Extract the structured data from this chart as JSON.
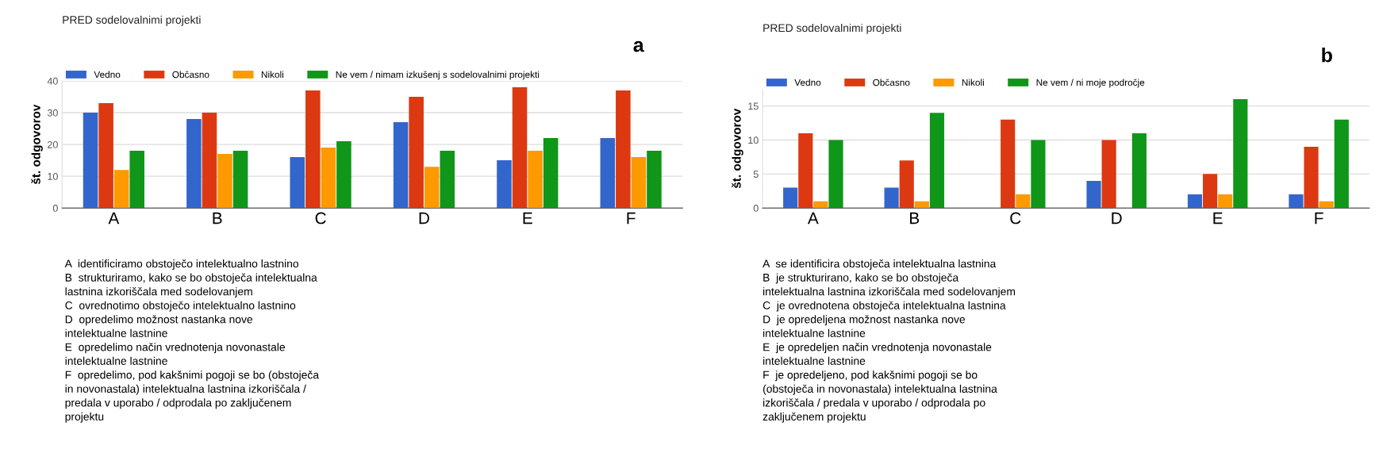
{
  "chart_data": [
    {
      "type": "bar",
      "title": "PRED sodelovalnimi projekti",
      "ylabel": "št. odgovorov",
      "categories": [
        "A",
        "B",
        "C",
        "D",
        "E",
        "F"
      ],
      "series": [
        {
          "name": "Vedno",
          "color": "#3366cc",
          "values": [
            30,
            28,
            16,
            27,
            15,
            22
          ]
        },
        {
          "name": "Občasno",
          "color": "#dc3912",
          "values": [
            33,
            30,
            37,
            35,
            38,
            37
          ]
        },
        {
          "name": "Nikoli",
          "color": "#ff9900",
          "values": [
            12,
            17,
            19,
            13,
            18,
            16
          ]
        },
        {
          "name": "Ne vem / nimam izkušenj s sodelovalnimi projekti",
          "color": "#109618",
          "values": [
            18,
            18,
            21,
            18,
            22,
            18
          ]
        }
      ],
      "ylim": [
        0,
        40
      ],
      "yticks": [
        0,
        10,
        20,
        30,
        40
      ],
      "grid": "y",
      "legend": "top left",
      "annotations": [
        "a",
        "A  identificiramo obstoječo intelektualno lastnino\nB  strukturiramo, kako se bo obstoječa intelektualna\nlastnina izkoriščala med sodelovanjem\nC  ovrednotimo obstoječo intelektualno lastnino\nD  opredelimo možnost nastanka nove\nintelektualne lastnine\nE  opredelimo način vrednotenja novonastale\nintelektualne lastnine\nF  opredelimo, pod kakšnimi pogoji se bo (obstoječa\nin novonastala) intelektualna lastnina izkoriščala /\npredala v uporabo / odprodala po zaključenem\nprojektu"
      ]
    },
    {
      "type": "bar",
      "title": "PRED sodelovalnimi projekti",
      "ylabel": "št. odgovorov",
      "categories": [
        "A",
        "B",
        "C",
        "D",
        "E",
        "F"
      ],
      "series": [
        {
          "name": "Vedno",
          "color": "#3366cc",
          "values": [
            3,
            3,
            0,
            4,
            2,
            2
          ]
        },
        {
          "name": "Občasno",
          "color": "#dc3912",
          "values": [
            11,
            7,
            13,
            10,
            5,
            9
          ]
        },
        {
          "name": "Nikoli",
          "color": "#ff9900",
          "values": [
            1,
            1,
            2,
            0,
            2,
            1
          ]
        },
        {
          "name": "Ne vem / ni moje področje",
          "color": "#109618",
          "values": [
            10,
            14,
            10,
            11,
            16,
            13
          ]
        }
      ],
      "ylim": [
        0,
        17.5
      ],
      "yticks": [
        0,
        5,
        10,
        15
      ],
      "grid": "y",
      "legend": "top left",
      "annotations": [
        "b",
        "A  se identificira obstoječa intelektualna lastnina\nB  je strukturirano, kako se bo obstoječa\nintelektualna lastnina izkoriščala med sodelovanjem\nC  je ovrednotena obstoječa intelektualna lastnina\nD  je opredeljena možnost nastanka nove\nintelektualne lastnine\nE  je opredeljen način vrednotenja novonastale\nintelektualne lastnine\nF  je opredeljeno, pod kakšnimi pogoji se bo\n(obstoječa in novonastala) intelektualna lastnina\nizkoriščala / predala v uporabo / odprodala po\nzaključenem projektu"
      ]
    }
  ]
}
